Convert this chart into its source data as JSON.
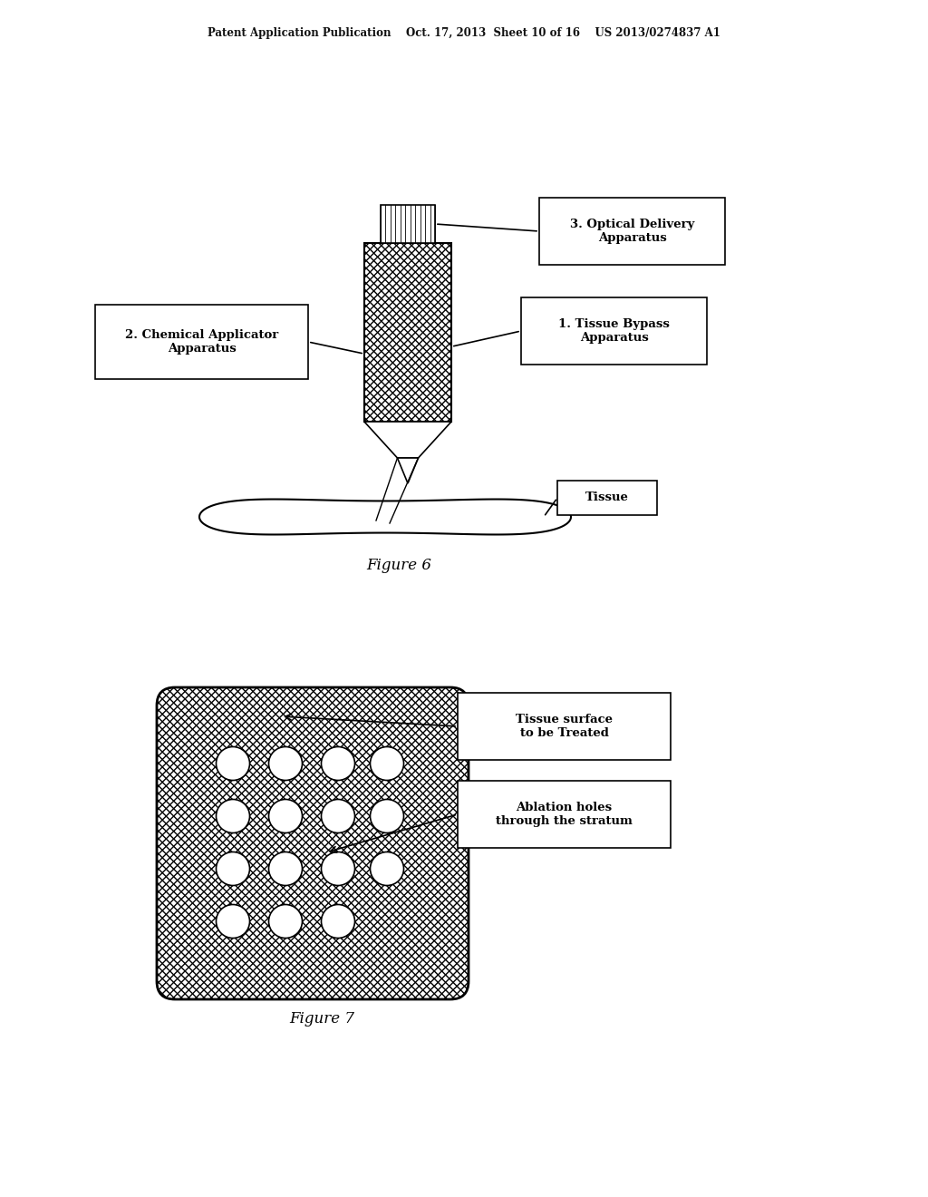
{
  "bg_color": "#ffffff",
  "header_text": "Patent Application Publication    Oct. 17, 2013  Sheet 10 of 16    US 2013/0274837 A1",
  "fig6_caption": "Figure 6",
  "fig7_caption": "Figure 7",
  "label_optical": "3. Optical Delivery\nApparatus",
  "label_bypass": "1. Tissue Bypass\nApparatus",
  "label_chemical": "2. Chemical Applicator\nApparatus",
  "label_tissue": "Tissue",
  "label_tissue_surface": "Tissue surface\nto be Treated",
  "label_ablation": "Ablation holes\nthrough the stratum"
}
